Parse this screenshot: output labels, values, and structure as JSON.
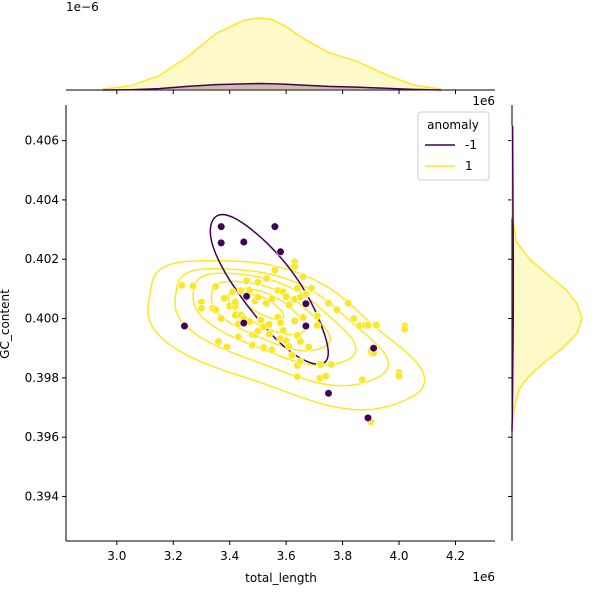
{
  "chart_data": {
    "type": "scatter",
    "title": "",
    "xlabel": "total_length",
    "ylabel": "GC_content",
    "x_offset_text": "1e6",
    "x_marg_offset_text": "1e6",
    "y_marg_offset_text": "1e−6",
    "xlim": [
      2.82,
      4.34
    ],
    "ylim": [
      0.3925,
      0.4072
    ],
    "x_ticks": [
      3.0,
      3.2,
      3.4,
      3.6,
      3.8,
      4.0,
      4.2
    ],
    "x_tick_labels": [
      "3.0",
      "3.2",
      "3.4",
      "3.6",
      "3.8",
      "4.0",
      "4.2"
    ],
    "y_ticks": [
      0.394,
      0.396,
      0.398,
      0.4,
      0.402,
      0.404,
      0.406
    ],
    "y_tick_labels": [
      "0.394",
      "0.396",
      "0.398",
      "0.400",
      "0.402",
      "0.404",
      "0.406"
    ],
    "grid": false,
    "legend": {
      "title": "anomaly",
      "placement": "top-right",
      "entries": [
        {
          "label": "-1",
          "color": "#440154"
        },
        {
          "label": "1",
          "color": "#fde725"
        }
      ]
    },
    "series": [
      {
        "name": "-1",
        "color": "#440154",
        "points": [
          [
            3.24,
            0.39975
          ],
          [
            3.37,
            0.4031
          ],
          [
            3.37,
            0.40255
          ],
          [
            3.45,
            0.40258
          ],
          [
            3.46,
            0.40075
          ],
          [
            3.45,
            0.39985
          ],
          [
            3.56,
            0.4031
          ],
          [
            3.58,
            0.40225
          ],
          [
            3.67,
            0.4005
          ],
          [
            3.67,
            0.39975
          ],
          [
            3.75,
            0.39748
          ],
          [
            3.89,
            0.39665
          ],
          [
            3.91,
            0.399
          ]
        ]
      },
      {
        "name": "1",
        "color": "#fde725",
        "points": [
          [
            3.23,
            0.40112
          ],
          [
            3.27,
            0.4011
          ],
          [
            3.3,
            0.40055
          ],
          [
            3.3,
            0.40035
          ],
          [
            3.34,
            0.40035
          ],
          [
            3.35,
            0.40108
          ],
          [
            3.35,
            0.4003
          ],
          [
            3.36,
            0.39922
          ],
          [
            3.37,
            0.4
          ],
          [
            3.38,
            0.40068
          ],
          [
            3.39,
            0.39904
          ],
          [
            3.4,
            0.40042
          ],
          [
            3.41,
            0.4009
          ],
          [
            3.42,
            0.40042
          ],
          [
            3.42,
            0.40056
          ],
          [
            3.42,
            0.40012
          ],
          [
            3.43,
            0.39982
          ],
          [
            3.43,
            0.39938
          ],
          [
            3.44,
            0.40094
          ],
          [
            3.44,
            0.40012
          ],
          [
            3.45,
            0.4
          ],
          [
            3.46,
            0.40128
          ],
          [
            3.47,
            0.40096
          ],
          [
            3.47,
            0.3999
          ],
          [
            3.48,
            0.39946
          ],
          [
            3.48,
            0.3991
          ],
          [
            3.49,
            0.4006
          ],
          [
            3.49,
            0.39945
          ],
          [
            3.5,
            0.40123
          ],
          [
            3.5,
            0.40072
          ],
          [
            3.5,
            0.39958
          ],
          [
            3.51,
            0.39995
          ],
          [
            3.52,
            0.39902
          ],
          [
            3.52,
            0.39972
          ],
          [
            3.53,
            0.40135
          ],
          [
            3.53,
            0.40051
          ],
          [
            3.54,
            0.39948
          ],
          [
            3.54,
            0.3998
          ],
          [
            3.55,
            0.40066
          ],
          [
            3.55,
            0.39895
          ],
          [
            3.56,
            0.40164
          ],
          [
            3.57,
            0.40095
          ],
          [
            3.57,
            0.40004
          ],
          [
            3.58,
            0.39986
          ],
          [
            3.58,
            0.39932
          ],
          [
            3.59,
            0.4009
          ],
          [
            3.59,
            0.3996
          ],
          [
            3.6,
            0.40074
          ],
          [
            3.6,
            0.39925
          ],
          [
            3.61,
            0.40046
          ],
          [
            3.61,
            0.39906
          ],
          [
            3.62,
            0.39876
          ],
          [
            3.63,
            0.40191
          ],
          [
            3.63,
            0.40175
          ],
          [
            3.63,
            0.40065
          ],
          [
            3.63,
            0.39992
          ],
          [
            3.64,
            0.40102
          ],
          [
            3.64,
            0.39943
          ],
          [
            3.64,
            0.39842
          ],
          [
            3.64,
            0.39804
          ],
          [
            3.65,
            0.40072
          ],
          [
            3.65,
            0.39923
          ],
          [
            3.65,
            0.39855
          ],
          [
            3.66,
            0.40141
          ],
          [
            3.66,
            0.40004
          ],
          [
            3.67,
            0.40082
          ],
          [
            3.68,
            0.39904
          ],
          [
            3.69,
            0.40102
          ],
          [
            3.71,
            0.40009
          ],
          [
            3.71,
            0.39977
          ],
          [
            3.72,
            0.39845
          ],
          [
            3.72,
            0.39799
          ],
          [
            3.74,
            0.39806
          ],
          [
            3.75,
            0.40052
          ],
          [
            3.76,
            0.39845
          ],
          [
            3.78,
            0.4003
          ],
          [
            3.82,
            0.40052
          ],
          [
            3.84,
            0.4
          ],
          [
            3.86,
            0.39976
          ],
          [
            3.87,
            0.39794
          ],
          [
            3.88,
            0.39978
          ],
          [
            3.89,
            0.39977
          ],
          [
            3.9,
            0.39888
          ],
          [
            3.91,
            0.39884
          ],
          [
            3.9,
            0.39652
          ],
          [
            3.92,
            0.39978
          ],
          [
            4.0,
            0.39818
          ],
          [
            4.0,
            0.39806
          ],
          [
            4.02,
            0.39975
          ],
          [
            4.02,
            0.39964
          ]
        ]
      }
    ],
    "x_density": {
      "x": [
        2.95,
        3.05,
        3.15,
        3.25,
        3.35,
        3.45,
        3.5,
        3.55,
        3.6,
        3.65,
        3.75,
        3.85,
        3.95,
        4.05,
        4.15
      ],
      "series_1": [
        0.01,
        0.06,
        0.2,
        0.46,
        0.78,
        0.97,
        1.0,
        0.98,
        0.88,
        0.74,
        0.52,
        0.4,
        0.22,
        0.07,
        0.01
      ],
      "series_neg1": [
        0.0,
        0.004,
        0.02,
        0.05,
        0.075,
        0.085,
        0.09,
        0.088,
        0.08,
        0.07,
        0.05,
        0.04,
        0.025,
        0.008,
        0.0
      ]
    },
    "y_density": {
      "y": [
        0.3962,
        0.397,
        0.3976,
        0.398,
        0.3985,
        0.399,
        0.3995,
        0.4,
        0.4005,
        0.401,
        0.4015,
        0.402,
        0.4026,
        0.4035,
        0.405,
        0.4065
      ],
      "series_1": [
        0.0,
        0.03,
        0.1,
        0.22,
        0.45,
        0.72,
        0.93,
        1.0,
        0.93,
        0.76,
        0.5,
        0.25,
        0.06,
        0.0,
        0.0,
        0.0
      ],
      "series_neg1": [
        0.0,
        0.005,
        0.008,
        0.01,
        0.012,
        0.014,
        0.016,
        0.017,
        0.018,
        0.018,
        0.018,
        0.018,
        0.017,
        0.015,
        0.012,
        0.008
      ]
    }
  }
}
